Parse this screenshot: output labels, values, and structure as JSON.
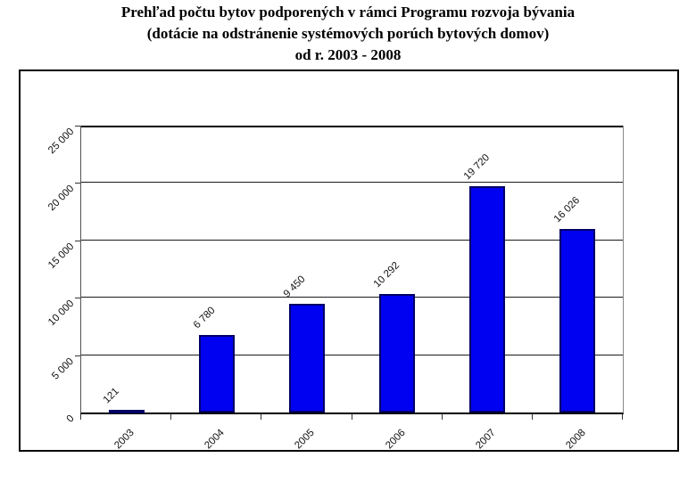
{
  "title": {
    "line1": "Prehľad počtu bytov podporených v rámci Programu rozvoja bývania",
    "line2": "(dotácie na odstránenie systémových porúch bytových domov)",
    "line3": "od r. 2003 - 2008"
  },
  "chart_data": {
    "type": "bar",
    "title": "Prehľad počtu bytov podporených v rámci Programu rozvoja bývania (dotácie na odstránenie systémových porúch bytových domov) od r. 2003 - 2008",
    "categories": [
      "2003",
      "2004",
      "2005",
      "2006",
      "2007",
      "2008"
    ],
    "values": [
      121,
      6780,
      9450,
      10292,
      19720,
      16026
    ],
    "value_labels": [
      "121",
      "6 780",
      "9 450",
      "10 292",
      "19 720",
      "16 026"
    ],
    "y_ticks": [
      0,
      5000,
      10000,
      15000,
      20000,
      25000
    ],
    "y_tick_labels": [
      "0",
      "5 000",
      "10 000",
      "15 000",
      "20 000",
      "25 000"
    ],
    "ylim": [
      0,
      25000
    ],
    "xlabel": "",
    "ylabel": "",
    "grid": true,
    "legend": false,
    "bar_color": "#0101f2",
    "bar_border_color": "#000066",
    "label_color": "#111111"
  }
}
